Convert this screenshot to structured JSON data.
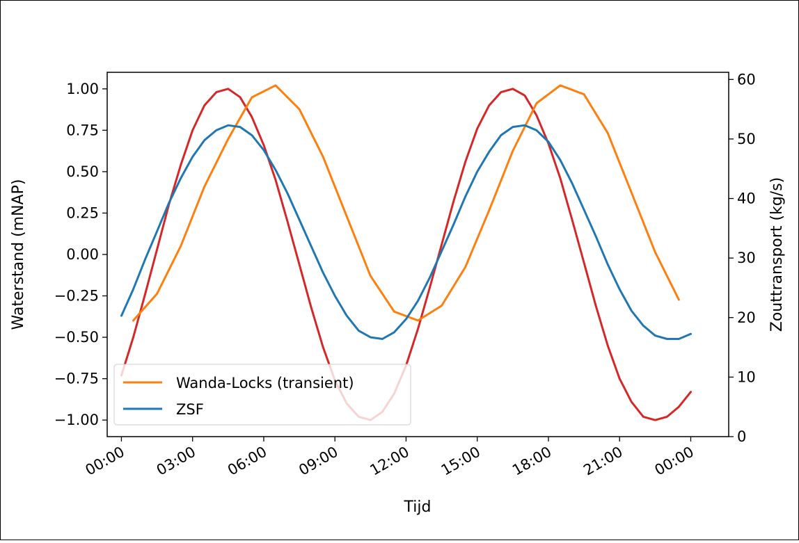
{
  "chart_data": {
    "type": "line",
    "xlabel": "Tijd",
    "ylabel": "Waterstand (mNAP)",
    "y2label": "Zouttransport (kg/s)",
    "xlim": [
      -0.6,
      25.6
    ],
    "ylim": [
      -1.1,
      1.1
    ],
    "y2lim": [
      0,
      61.2
    ],
    "x_ticks": [
      0,
      3,
      6,
      9,
      12,
      15,
      18,
      21,
      24
    ],
    "x_tick_labels": [
      "00:00",
      "03:00",
      "06:00",
      "09:00",
      "12:00",
      "15:00",
      "18:00",
      "21:00",
      "00:00"
    ],
    "y_ticks": [
      -1.0,
      -0.75,
      -0.5,
      -0.25,
      0.0,
      0.25,
      0.5,
      0.75,
      1.0
    ],
    "y_tick_labels": [
      "−1.00",
      "−0.75",
      "−0.50",
      "−0.25",
      "0.00",
      "0.25",
      "0.50",
      "0.75",
      "1.00"
    ],
    "y2_ticks": [
      0,
      10,
      20,
      30,
      40,
      50,
      60
    ],
    "y2_tick_labels": [
      "0",
      "10",
      "20",
      "30",
      "40",
      "50",
      "60"
    ],
    "legend_position": "lower-left",
    "series": [
      {
        "name": "",
        "axis": "left",
        "color": "#d62728",
        "x": [
          0,
          0.5,
          1,
          1.5,
          2,
          2.5,
          3,
          3.5,
          4,
          4.5,
          5,
          5.5,
          6,
          6.5,
          7,
          7.5,
          8,
          8.5,
          9,
          9.5,
          10,
          10.5,
          11,
          11.5,
          12,
          12.5,
          13,
          13.5,
          14,
          14.5,
          15,
          15.5,
          16,
          16.5,
          17,
          17.5,
          18,
          18.5,
          19,
          19.5,
          20,
          20.5,
          21,
          21.5,
          22,
          22.5,
          23,
          23.5,
          24
        ],
        "y": [
          -0.73,
          -0.5,
          -0.24,
          0.03,
          0.3,
          0.54,
          0.75,
          0.9,
          0.98,
          1.0,
          0.95,
          0.83,
          0.66,
          0.45,
          0.2,
          -0.06,
          -0.32,
          -0.56,
          -0.76,
          -0.9,
          -0.98,
          -1.0,
          -0.95,
          -0.84,
          -0.67,
          -0.45,
          -0.2,
          0.06,
          0.32,
          0.56,
          0.76,
          0.9,
          0.98,
          1.0,
          0.96,
          0.84,
          0.67,
          0.46,
          0.21,
          -0.05,
          -0.31,
          -0.55,
          -0.75,
          -0.89,
          -0.98,
          -1.0,
          -0.98,
          -0.92,
          -0.83
        ]
      },
      {
        "name": "Wanda-Locks (transient)",
        "axis": "right",
        "color": "#ff7f0e",
        "x": [
          0.5,
          1.5,
          2.5,
          3.5,
          4.5,
          5.5,
          6.5,
          7.5,
          8.5,
          9.5,
          10.5,
          11.5,
          12.5,
          13.5,
          14.5,
          15.5,
          16.5,
          17.5,
          18.5,
          19.5,
          20.5,
          21.5,
          22.5,
          23.5
        ],
        "y": [
          19.5,
          24,
          32,
          42,
          50,
          57,
          59,
          55,
          47,
          37,
          27,
          21,
          19.5,
          22,
          28.5,
          38,
          48,
          56,
          59,
          57.5,
          51,
          41,
          31,
          23
        ]
      },
      {
        "name": "ZSF",
        "axis": "left",
        "color": "#1f77b4",
        "x": [
          0,
          0.5,
          1,
          1.5,
          2,
          2.5,
          3,
          3.5,
          4,
          4.5,
          5,
          5.5,
          6,
          6.5,
          7,
          7.5,
          8,
          8.5,
          9,
          9.5,
          10,
          10.5,
          11,
          11.5,
          12,
          12.5,
          13,
          13.5,
          14,
          14.5,
          15,
          15.5,
          16,
          16.5,
          17,
          17.5,
          18,
          18.5,
          19,
          19.5,
          20,
          20.5,
          21,
          21.5,
          22,
          22.5,
          23,
          23.5,
          24
        ],
        "y": [
          -0.37,
          -0.21,
          -0.03,
          0.14,
          0.31,
          0.46,
          0.59,
          0.69,
          0.75,
          0.78,
          0.77,
          0.72,
          0.63,
          0.51,
          0.37,
          0.21,
          0.05,
          -0.11,
          -0.25,
          -0.37,
          -0.46,
          -0.5,
          -0.51,
          -0.47,
          -0.39,
          -0.28,
          -0.14,
          0.02,
          0.18,
          0.35,
          0.5,
          0.62,
          0.72,
          0.77,
          0.78,
          0.75,
          0.68,
          0.57,
          0.43,
          0.27,
          0.11,
          -0.06,
          -0.21,
          -0.34,
          -0.43,
          -0.49,
          -0.51,
          -0.51,
          -0.48
        ]
      }
    ]
  }
}
